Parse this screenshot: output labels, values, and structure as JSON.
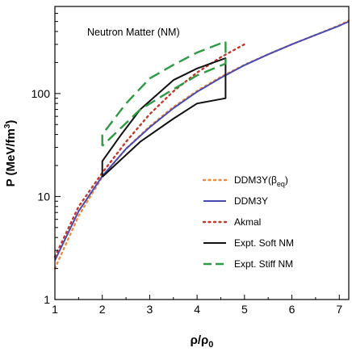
{
  "chart_data": {
    "type": "line",
    "title": "",
    "annotation": "Neutron Matter (NM)",
    "xlabel": "ρ/ρ0",
    "ylabel": "P (MeV/fm³)",
    "xlim": [
      1,
      7.2
    ],
    "ylim": [
      1,
      700
    ],
    "y_scale": "log",
    "grid": false,
    "legend_position": "lower-right",
    "x_ticks": [
      1,
      2,
      3,
      4,
      5,
      6,
      7
    ],
    "y_ticks": [
      1,
      10,
      100
    ],
    "y_tick_labels": [
      "1",
      "10",
      "100"
    ],
    "series": [
      {
        "name": "DDM3Y(βeq)",
        "style": "dotted",
        "color": "#f08a3c",
        "x": [
          1.0,
          1.5,
          2.0,
          2.5,
          3.0,
          3.5,
          4.0,
          4.5,
          5.0,
          5.5,
          6.0,
          6.5,
          7.0,
          7.2
        ],
        "y": [
          2.0,
          6.5,
          15.5,
          29,
          48,
          74,
          106,
          145,
          190,
          240,
          300,
          370,
          460,
          510
        ]
      },
      {
        "name": "DDM3Y",
        "style": "solid",
        "color": "#4a4ab0",
        "x": [
          1.0,
          1.5,
          2.0,
          2.5,
          3.0,
          3.5,
          4.0,
          4.5,
          5.0,
          5.5,
          6.0,
          6.5,
          7.0,
          7.2
        ],
        "y": [
          2.4,
          7.2,
          15.8,
          29,
          47,
          72,
          104,
          142,
          188,
          240,
          300,
          370,
          455,
          500
        ]
      },
      {
        "name": "Akmal",
        "style": "dotted",
        "color": "#c0392b",
        "x": [
          1.0,
          1.5,
          2.0,
          2.5,
          3.0,
          3.5,
          4.0,
          4.5,
          5.0
        ],
        "y": [
          2.6,
          8.0,
          17.0,
          34,
          63,
          105,
          160,
          225,
          300
        ]
      },
      {
        "name": "Expt. Soft NM",
        "style": "solid",
        "color": "#111111",
        "x": [
          2.0,
          2.0,
          2.4,
          2.8,
          3.5,
          4.0,
          4.6,
          4.6,
          4.0,
          3.5,
          2.8,
          2.0
        ],
        "y": [
          15.5,
          22,
          40,
          70,
          135,
          175,
          220,
          90,
          80,
          57,
          34,
          15.5
        ]
      },
      {
        "name": "Expt. Stiff NM",
        "style": "dashed",
        "color": "#2e9a44",
        "x": [
          2.0,
          2.0,
          2.5,
          3.0,
          3.5,
          4.0,
          4.6,
          4.6,
          4.0,
          3.5,
          2.8,
          2.0
        ],
        "y": [
          31,
          40,
          80,
          140,
          190,
          250,
          320,
          195,
          150,
          110,
          70,
          31
        ]
      }
    ]
  }
}
